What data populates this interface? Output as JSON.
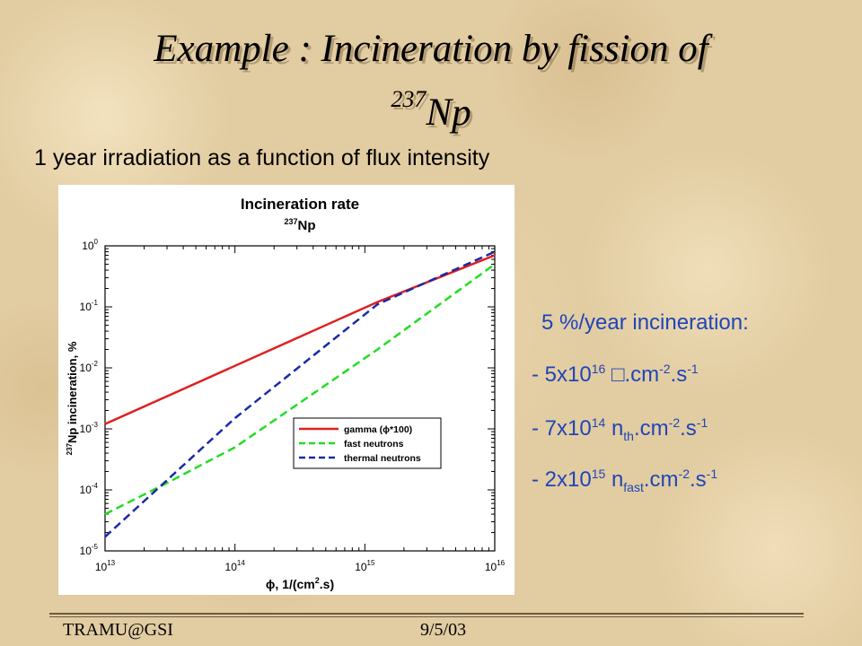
{
  "slide": {
    "title": "Example : Incineration by fission of",
    "title_isotope_mass": "237",
    "title_isotope_symbol": "Np",
    "subtitle": "1 year irradiation as a function of flux intensity"
  },
  "notes": {
    "heading": "5 %/year incineration:",
    "items": [
      {
        "prefix": "- 5x10",
        "exp": "16",
        "particle": "□",
        "particle_sub": "",
        "unit": ".cm",
        "unit_exp1": "-2",
        "unit2": ".s",
        "unit_exp2": "-1"
      },
      {
        "prefix": "- 7x10",
        "exp": "14",
        "particle": " n",
        "particle_sub": "th",
        "unit": ".cm",
        "unit_exp1": "-2",
        "unit2": ".s",
        "unit_exp2": "-1"
      },
      {
        "prefix": "- 2x10",
        "exp": "15",
        "particle": " n",
        "particle_sub": "fast",
        "unit": ".cm",
        "unit_exp1": "-2",
        "unit2": ".s",
        "unit_exp2": "-1"
      }
    ],
    "color": "#1f45b8"
  },
  "footer": {
    "left": "TRAMU@GSI",
    "right": "9/5/03"
  },
  "chart_data": {
    "type": "line",
    "title": "Incineration rate",
    "subtitle_mass": "237",
    "subtitle_symbol": "Np",
    "xlabel_symbol": "ϕ",
    "xlabel_text": ", 1/(cm",
    "xlabel_exp": "2",
    "xlabel_tail": ".s)",
    "ylabel_mass": "237",
    "ylabel_text": "Np incineration, %",
    "x_scale": "log",
    "y_scale": "log",
    "xlim": [
      10000000000000.0,
      1e+16
    ],
    "ylim": [
      1e-05,
      1
    ],
    "x_ticks": [
      10000000000000.0,
      100000000000000.0,
      1000000000000000.0,
      1e+16
    ],
    "x_tick_exps": [
      "13",
      "14",
      "15",
      "16"
    ],
    "y_ticks": [
      1e-05,
      0.0001,
      0.001,
      0.01,
      0.1,
      1
    ],
    "y_tick_exps": [
      "-5",
      "-4",
      "-3",
      "-2",
      "-1",
      "0"
    ],
    "tick_base": "10",
    "grid": false,
    "legend_position": "bottom-right",
    "series": [
      {
        "name": "gamma (ϕ*100)",
        "color": "#e02020",
        "dash": "solid",
        "x": [
          10000000000000.0,
          1250000000000000.0,
          1e+16
        ],
        "y": [
          0.0012,
          0.12,
          0.7
        ]
      },
      {
        "name": "fast neutrons",
        "color": "#22dd22",
        "dash": "dashed",
        "x": [
          10000000000000.0,
          30000000000000.0,
          100000000000000.0,
          1250000000000000.0,
          1e+16
        ],
        "y": [
          4e-05,
          0.00013,
          0.0005,
          0.02,
          0.5
        ]
      },
      {
        "name": "thermal neutrons",
        "color": "#1a2aa8",
        "dash": "dashed",
        "x": [
          10000000000000.0,
          100000000000000.0,
          1250000000000000.0,
          1e+16
        ],
        "y": [
          1.7e-05,
          0.0015,
          0.11,
          0.8
        ]
      }
    ]
  }
}
